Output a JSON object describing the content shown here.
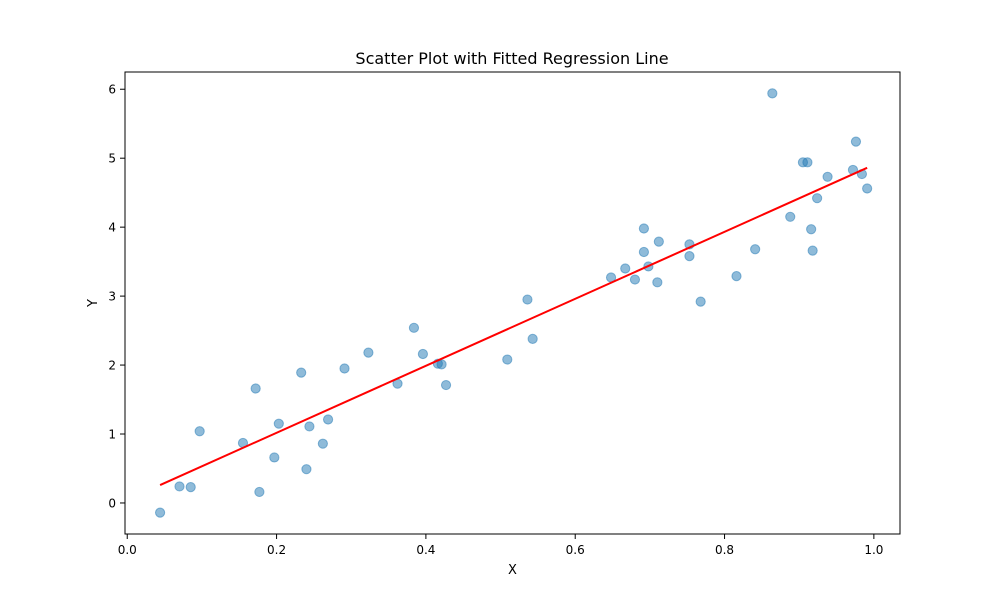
{
  "chart_data": {
    "type": "scatter",
    "title": "Scatter Plot with Fitted Regression Line",
    "xlabel": "X",
    "ylabel": "Y",
    "xlim": [
      -0.003,
      1.035
    ],
    "ylim": [
      -0.45,
      6.25
    ],
    "xticks": [
      0.0,
      0.2,
      0.4,
      0.6,
      0.8,
      1.0
    ],
    "xtick_labels": [
      "0.0",
      "0.2",
      "0.4",
      "0.6",
      "0.8",
      "1.0"
    ],
    "yticks": [
      0,
      1,
      2,
      3,
      4,
      5,
      6
    ],
    "ytick_labels": [
      "0",
      "1",
      "2",
      "3",
      "4",
      "5",
      "6"
    ],
    "grid": false,
    "legend": "none",
    "series": [
      {
        "kind": "scatter",
        "color": "#1f77b4",
        "opacity": 0.5,
        "points": [
          [
            0.044,
            -0.14
          ],
          [
            0.07,
            0.24
          ],
          [
            0.085,
            0.23
          ],
          [
            0.097,
            1.04
          ],
          [
            0.155,
            0.87
          ],
          [
            0.172,
            1.66
          ],
          [
            0.177,
            0.16
          ],
          [
            0.197,
            0.66
          ],
          [
            0.203,
            1.15
          ],
          [
            0.233,
            1.89
          ],
          [
            0.24,
            0.49
          ],
          [
            0.244,
            1.11
          ],
          [
            0.262,
            0.86
          ],
          [
            0.269,
            1.21
          ],
          [
            0.291,
            1.95
          ],
          [
            0.323,
            2.18
          ],
          [
            0.362,
            1.73
          ],
          [
            0.384,
            2.54
          ],
          [
            0.396,
            2.16
          ],
          [
            0.416,
            2.02
          ],
          [
            0.421,
            2.01
          ],
          [
            0.427,
            1.71
          ],
          [
            0.509,
            2.08
          ],
          [
            0.536,
            2.95
          ],
          [
            0.543,
            2.38
          ],
          [
            0.648,
            3.27
          ],
          [
            0.667,
            3.4
          ],
          [
            0.68,
            3.24
          ],
          [
            0.692,
            3.98
          ],
          [
            0.692,
            3.64
          ],
          [
            0.698,
            3.43
          ],
          [
            0.71,
            3.2
          ],
          [
            0.712,
            3.79
          ],
          [
            0.753,
            3.75
          ],
          [
            0.753,
            3.58
          ],
          [
            0.768,
            2.92
          ],
          [
            0.816,
            3.29
          ],
          [
            0.841,
            3.68
          ],
          [
            0.864,
            5.94
          ],
          [
            0.888,
            4.15
          ],
          [
            0.905,
            4.94
          ],
          [
            0.911,
            4.94
          ],
          [
            0.916,
            3.97
          ],
          [
            0.918,
            3.66
          ],
          [
            0.924,
            4.42
          ],
          [
            0.938,
            4.73
          ],
          [
            0.972,
            4.83
          ],
          [
            0.976,
            5.24
          ],
          [
            0.984,
            4.77
          ],
          [
            0.991,
            4.56
          ]
        ]
      },
      {
        "kind": "line",
        "color": "#ff0000",
        "points": [
          [
            0.044,
            0.26
          ],
          [
            0.991,
            4.86
          ]
        ]
      }
    ]
  }
}
